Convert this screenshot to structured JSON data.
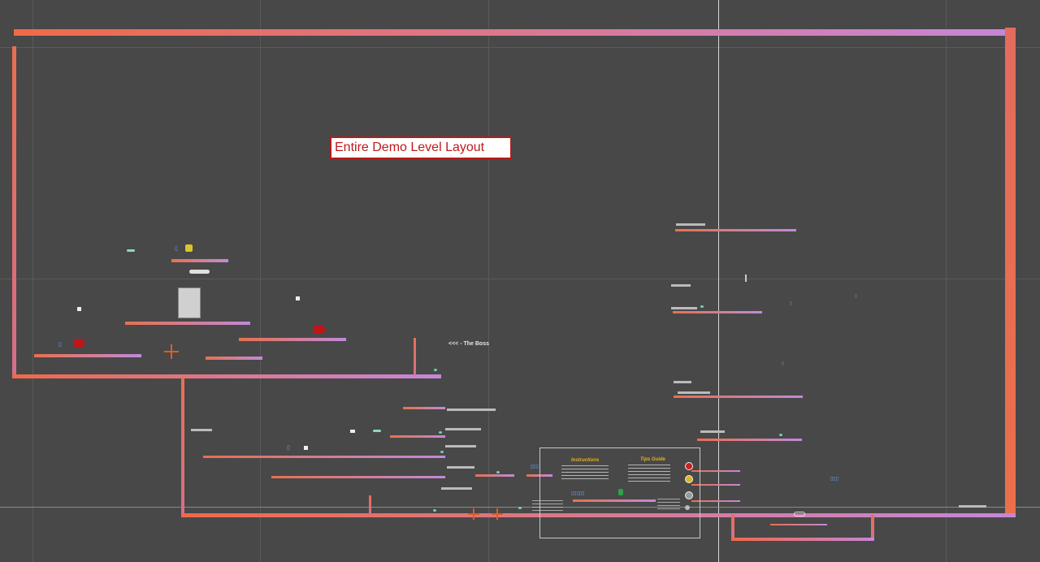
{
  "scene": {
    "title": "Entire Demo Level Layout",
    "boss_label": "<<< - The Boss"
  },
  "panel": {
    "instructions_heading": "Instructions",
    "guide_heading": "Tips Guide"
  },
  "colors": {
    "background": "#484848",
    "wall_start": "#ef6a48",
    "wall_end": "#c686d8",
    "title_border": "#b31c1c",
    "title_text": "#c0191b",
    "panel_heading": "#e8b21a"
  },
  "icons": {
    "enemy": "red-blob-icon",
    "coin": "yellow-gem-icon",
    "player": "vertical-marker-icon",
    "spawn": "crosshair-icon"
  }
}
